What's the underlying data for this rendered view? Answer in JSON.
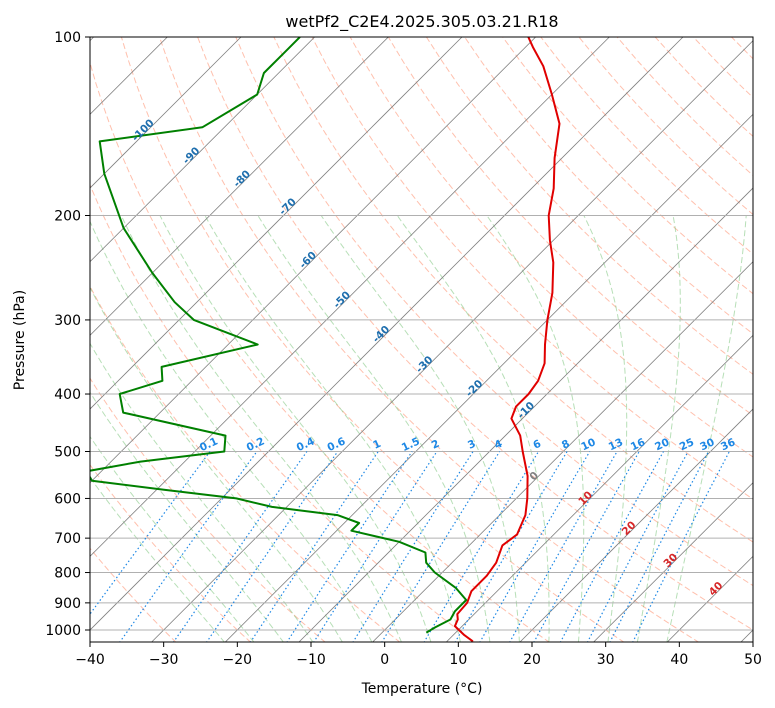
{
  "chart_data": {
    "type": "line",
    "chart_kind": "skew-T log-p",
    "title": "wetPf2_C2E4.2025.305.03.21.R18",
    "xlabel": "Temperature (°C)",
    "ylabel": "Pressure (hPa)",
    "xlim": [
      -40,
      50
    ],
    "ylim": [
      1050,
      100
    ],
    "y_scale": "log",
    "x_ticks": [
      "−40",
      "−30",
      "−20",
      "−10",
      "0",
      "10",
      "20",
      "30",
      "40",
      "50"
    ],
    "x_tick_values": [
      -40,
      -30,
      -20,
      -10,
      0,
      10,
      20,
      30,
      40,
      50
    ],
    "y_ticks": [
      "100",
      "200",
      "300",
      "400",
      "500",
      "600",
      "700",
      "800",
      "900",
      "1000"
    ],
    "y_tick_values": [
      100,
      200,
      300,
      400,
      500,
      600,
      700,
      800,
      900,
      1000
    ],
    "grid": true,
    "series": [
      {
        "role": "temperature",
        "color": "#e00000",
        "points": [
          [
            1045,
            13.5
          ],
          [
            1020,
            11.5
          ],
          [
            985,
            9
          ],
          [
            960,
            8.5
          ],
          [
            940,
            7.7
          ],
          [
            900,
            7.5
          ],
          [
            860,
            6.5
          ],
          [
            810,
            6.5
          ],
          [
            770,
            6
          ],
          [
            720,
            4.5
          ],
          [
            690,
            5
          ],
          [
            640,
            3.5
          ],
          [
            600,
            1.5
          ],
          [
            550,
            -1.5
          ],
          [
            500,
            -5.5
          ],
          [
            470,
            -8
          ],
          [
            440,
            -11.5
          ],
          [
            420,
            -12.5
          ],
          [
            400,
            -12.5
          ],
          [
            380,
            -13
          ],
          [
            355,
            -14.5
          ],
          [
            330,
            -17
          ],
          [
            300,
            -20
          ],
          [
            270,
            -23
          ],
          [
            240,
            -27
          ],
          [
            220,
            -30.5
          ],
          [
            200,
            -34
          ],
          [
            180,
            -37
          ],
          [
            160,
            -41
          ],
          [
            140,
            -45
          ],
          [
            125,
            -50
          ],
          [
            112,
            -55
          ],
          [
            104,
            -59
          ],
          [
            100,
            -61
          ]
        ]
      },
      {
        "role": "dewpoint",
        "color": "#008000",
        "points": [
          [
            1010,
            6
          ],
          [
            990,
            6.5
          ],
          [
            960,
            7.5
          ],
          [
            930,
            7
          ],
          [
            890,
            7
          ],
          [
            850,
            4
          ],
          [
            800,
            -1
          ],
          [
            770,
            -3.5
          ],
          [
            740,
            -5
          ],
          [
            710,
            -10
          ],
          [
            680,
            -18
          ],
          [
            660,
            -18
          ],
          [
            640,
            -22
          ],
          [
            620,
            -32
          ],
          [
            600,
            -38
          ],
          [
            580,
            -49
          ],
          [
            560,
            -60
          ],
          [
            540,
            -62
          ],
          [
            520,
            -56
          ],
          [
            500,
            -46
          ],
          [
            470,
            -48
          ],
          [
            430,
            -65
          ],
          [
            400,
            -68
          ],
          [
            380,
            -64
          ],
          [
            360,
            -66
          ],
          [
            330,
            -56
          ],
          [
            300,
            -68
          ],
          [
            280,
            -73
          ],
          [
            250,
            -80
          ],
          [
            210,
            -90
          ],
          [
            170,
            -100
          ],
          [
            150,
            -105
          ],
          [
            142,
            -93
          ],
          [
            125,
            -90
          ],
          [
            115,
            -92
          ],
          [
            105,
            -92
          ],
          [
            100,
            -92
          ]
        ]
      }
    ],
    "isotherm_labels": [
      "-100",
      "-90",
      "-80",
      "-70",
      "-60",
      "-50",
      "-40",
      "-30",
      "-20",
      "-10",
      "0",
      "10",
      "20",
      "30",
      "40"
    ],
    "mixing_ratio_labels": [
      "0.1",
      "0.2",
      "0.4",
      "0.6",
      "1",
      "1.5",
      "2",
      "3",
      "4",
      "6",
      "8",
      "10",
      "13",
      "16",
      "20",
      "25",
      "30",
      "36"
    ],
    "colors": {
      "temperature": "#e00000",
      "dewpoint": "#008000",
      "isotherm_cold_label": "#1f6fae",
      "isotherm_zero_label": "#808080",
      "isotherm_warm_label": "#d62728",
      "mixing_ratio": "#1e88e5",
      "dry_adiabat": "#ff8c69",
      "moist_adiabat": "#6fbf6f",
      "isotherm_line": "#808080",
      "grid": "#b0b0b0"
    }
  }
}
